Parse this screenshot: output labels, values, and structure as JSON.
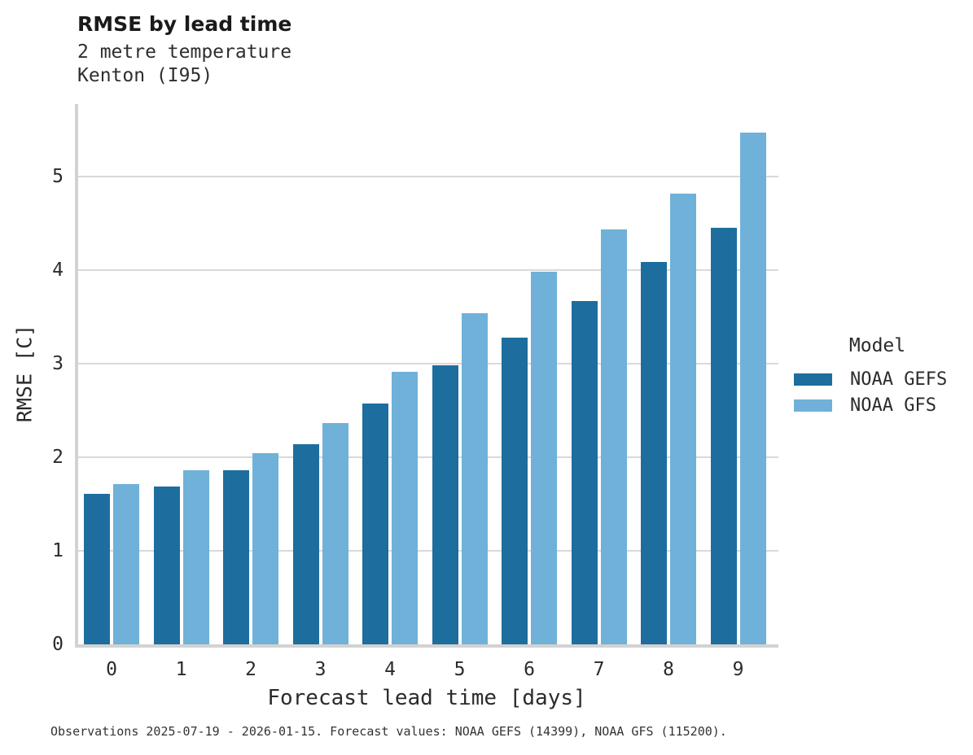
{
  "header": {
    "title": "RMSE by lead time",
    "subtitle_line1": "2 metre temperature",
    "subtitle_line2": "Kenton (I95)"
  },
  "legend": {
    "title": "Model",
    "items": [
      {
        "label": "NOAA GEFS",
        "color": "#1d6e9e"
      },
      {
        "label": "NOAA GFS",
        "color": "#6fb1d8"
      }
    ]
  },
  "caption": "Observations 2025-07-19 - 2026-01-15. Forecast values: NOAA GEFS (14399), NOAA GFS (115200).",
  "colors": {
    "gefs_dark_blue": "#1d6e9e",
    "gfs_light_blue": "#6fb1d8",
    "gridline": "#d9d9d9",
    "spine": "#d2d2d2",
    "text": "#262626"
  },
  "chart_data": {
    "type": "bar",
    "title": "RMSE by lead time",
    "subtitle": [
      "2 metre temperature",
      "Kenton (I95)"
    ],
    "categories": [
      "0",
      "1",
      "2",
      "3",
      "4",
      "5",
      "6",
      "7",
      "8",
      "9"
    ],
    "series": [
      {
        "name": "NOAA GEFS",
        "color": "#1d6e9e",
        "values": [
          1.61,
          1.69,
          1.86,
          2.14,
          2.57,
          2.98,
          3.28,
          3.67,
          4.08,
          4.45
        ]
      },
      {
        "name": "NOAA GFS",
        "color": "#6fb1d8",
        "values": [
          1.71,
          1.86,
          2.04,
          2.36,
          2.91,
          3.54,
          3.98,
          4.43,
          4.81,
          5.47
        ]
      }
    ],
    "xlabel": "Forecast lead time [days]",
    "ylabel": "RMSE [C]",
    "ylim": [
      0,
      5.77
    ],
    "yticks": [
      0,
      1,
      2,
      3,
      4,
      5
    ],
    "grid": true,
    "legend_position": "right",
    "legend_title": "Model"
  }
}
